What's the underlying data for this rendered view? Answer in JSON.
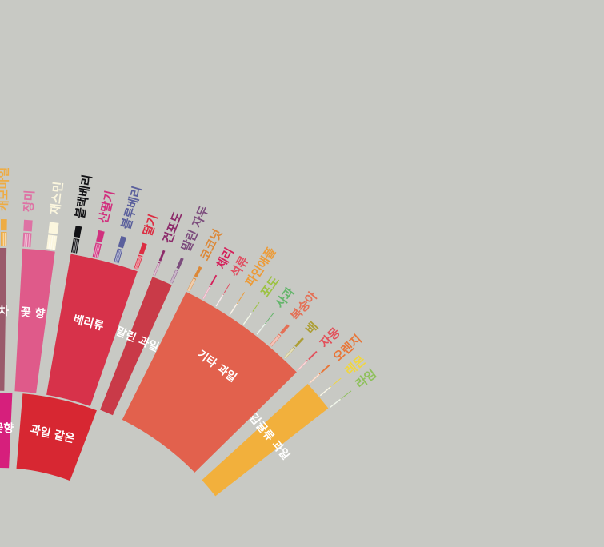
{
  "wheel": {
    "background": "#c8c9c4",
    "inner": [
      {
        "label": "과일 같은",
        "color": "#d72732",
        "text_color": "#ffffff"
      },
      {
        "label": "꽃향",
        "color": "#d61f7c",
        "text_color": "#ffffff"
      }
    ],
    "middle": [
      {
        "label": "감귤류 과일",
        "color": "#f2b03c",
        "text_color": "#ffffff"
      },
      {
        "label": "기타 과일",
        "color": "#e2614d",
        "text_color": "#ffffff"
      },
      {
        "label": "말린 과일",
        "color": "#c93a48",
        "text_color": "#ffffff"
      },
      {
        "label": "베리류",
        "color": "#d7324a",
        "text_color": "#ffffff"
      },
      {
        "label": "꽃 향",
        "color": "#df5a8a",
        "text_color": "#ffffff"
      },
      {
        "label": "홍차",
        "color": "#9a5a6b",
        "text_color": "#ffffff"
      }
    ],
    "outer": [
      {
        "label": "라임",
        "color": "#8ec05b"
      },
      {
        "label": "레몬",
        "color": "#f0d640"
      },
      {
        "label": "오렌지",
        "color": "#e87638"
      },
      {
        "label": "자몽",
        "color": "#e2505a"
      },
      {
        "label": "배",
        "color": "#ad9e35"
      },
      {
        "label": "복숭아",
        "color": "#e47056"
      },
      {
        "label": "사과",
        "color": "#63b56a"
      },
      {
        "label": "포도",
        "color": "#9cc242"
      },
      {
        "label": "파인애플",
        "color": "#ec9b38"
      },
      {
        "label": "석류",
        "color": "#df4f62"
      },
      {
        "label": "체리",
        "color": "#d5205a"
      },
      {
        "label": "코코넛",
        "color": "#dc8838"
      },
      {
        "label": "말린 자두",
        "color": "#7c4d7d"
      },
      {
        "label": "건포도",
        "color": "#8c2a6a"
      },
      {
        "label": "딸기",
        "color": "#dc2d42"
      },
      {
        "label": "블루베리",
        "color": "#5a5f9c"
      },
      {
        "label": "산딸기",
        "color": "#d1307e"
      },
      {
        "label": "블랙베리",
        "color": "#121215"
      },
      {
        "label": "재스민",
        "color": "#fbf6de"
      },
      {
        "label": "장미",
        "color": "#de72a4"
      },
      {
        "label": "캐모마일",
        "color": "#eeac44"
      }
    ]
  }
}
